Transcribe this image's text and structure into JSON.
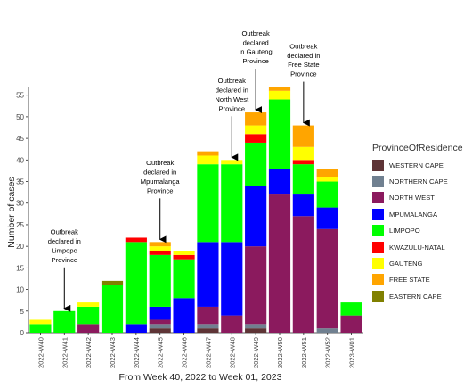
{
  "chart_data": {
    "type": "bar",
    "stacked": true,
    "xlabel": "From Week 40, 2022 to Week 01, 2023",
    "ylabel": "Number of cases",
    "ylim": [
      0,
      57
    ],
    "yticks": [
      0,
      5,
      10,
      15,
      20,
      25,
      30,
      35,
      40,
      45,
      50,
      55
    ],
    "grid": false,
    "legend_position": "right",
    "legend_title": "ProvinceOfResidence",
    "categories": [
      "2022-W40",
      "2022-W41",
      "2022-W42",
      "2022-W43",
      "2022-W44",
      "2022-W45",
      "2022-W46",
      "2022-W47",
      "2022-W48",
      "2022-W49",
      "2022-W50",
      "2022-W51",
      "2022-W52",
      "2023-W01"
    ],
    "series": [
      {
        "name": "WESTERN CAPE",
        "color": "#5e3436",
        "values": [
          0,
          0,
          0,
          0,
          0,
          1,
          0,
          1,
          0,
          1,
          0,
          0,
          0,
          0
        ]
      },
      {
        "name": "NORTHERN CAPE",
        "color": "#708090",
        "values": [
          0,
          0,
          0,
          0,
          0,
          1,
          0,
          1,
          0,
          1,
          0,
          0,
          1,
          0
        ]
      },
      {
        "name": "NORTH WEST",
        "color": "#8b1a5e",
        "values": [
          0,
          0,
          2,
          0,
          0,
          1,
          0,
          4,
          4,
          18,
          32,
          27,
          23,
          4
        ]
      },
      {
        "name": "MPUMALANGA",
        "color": "#0000ff",
        "values": [
          0,
          0,
          0,
          0,
          2,
          3,
          8,
          15,
          17,
          14,
          6,
          5,
          5,
          0
        ]
      },
      {
        "name": "LIMPOPO",
        "color": "#00ff00",
        "values": [
          2,
          5,
          4,
          11,
          19,
          12,
          9,
          18,
          18,
          10,
          16,
          7,
          6,
          3
        ]
      },
      {
        "name": "KWAZULU-NATAL",
        "color": "#ff0000",
        "values": [
          0,
          0,
          0,
          0,
          1,
          1,
          1,
          0,
          0,
          2,
          0,
          1,
          0,
          0
        ]
      },
      {
        "name": "GAUTENG",
        "color": "#ffff00",
        "values": [
          1,
          0,
          1,
          0,
          0,
          1,
          1,
          2,
          1,
          2,
          2,
          3,
          1,
          0
        ]
      },
      {
        "name": "FREE STATE",
        "color": "#ffa500",
        "values": [
          0,
          0,
          0,
          0,
          0,
          1,
          0,
          1,
          0,
          3,
          1,
          5,
          2,
          0
        ]
      },
      {
        "name": "EASTERN CAPE",
        "color": "#808000",
        "values": [
          0,
          0,
          0,
          1,
          0,
          0,
          0,
          0,
          0,
          0,
          0,
          0,
          0,
          0
        ]
      }
    ],
    "annotations": [
      {
        "text": [
          "Outbreak",
          "declared in",
          "Limpopo",
          "Province"
        ],
        "category": "2022-W41"
      },
      {
        "text": [
          "Outbreak",
          "declared in",
          "Mpumalanga",
          "Province"
        ],
        "category": "2022-W45"
      },
      {
        "text": [
          "Outbreak",
          "declared in",
          "North West",
          "Province"
        ],
        "category": "2022-W48"
      },
      {
        "text": [
          "Outbreak",
          "declared",
          "in Gauteng",
          "Province"
        ],
        "category": "2022-W49"
      },
      {
        "text": [
          "Outbreak",
          "declared in",
          "Free State",
          "Province"
        ],
        "category": "2022-W51"
      }
    ]
  }
}
